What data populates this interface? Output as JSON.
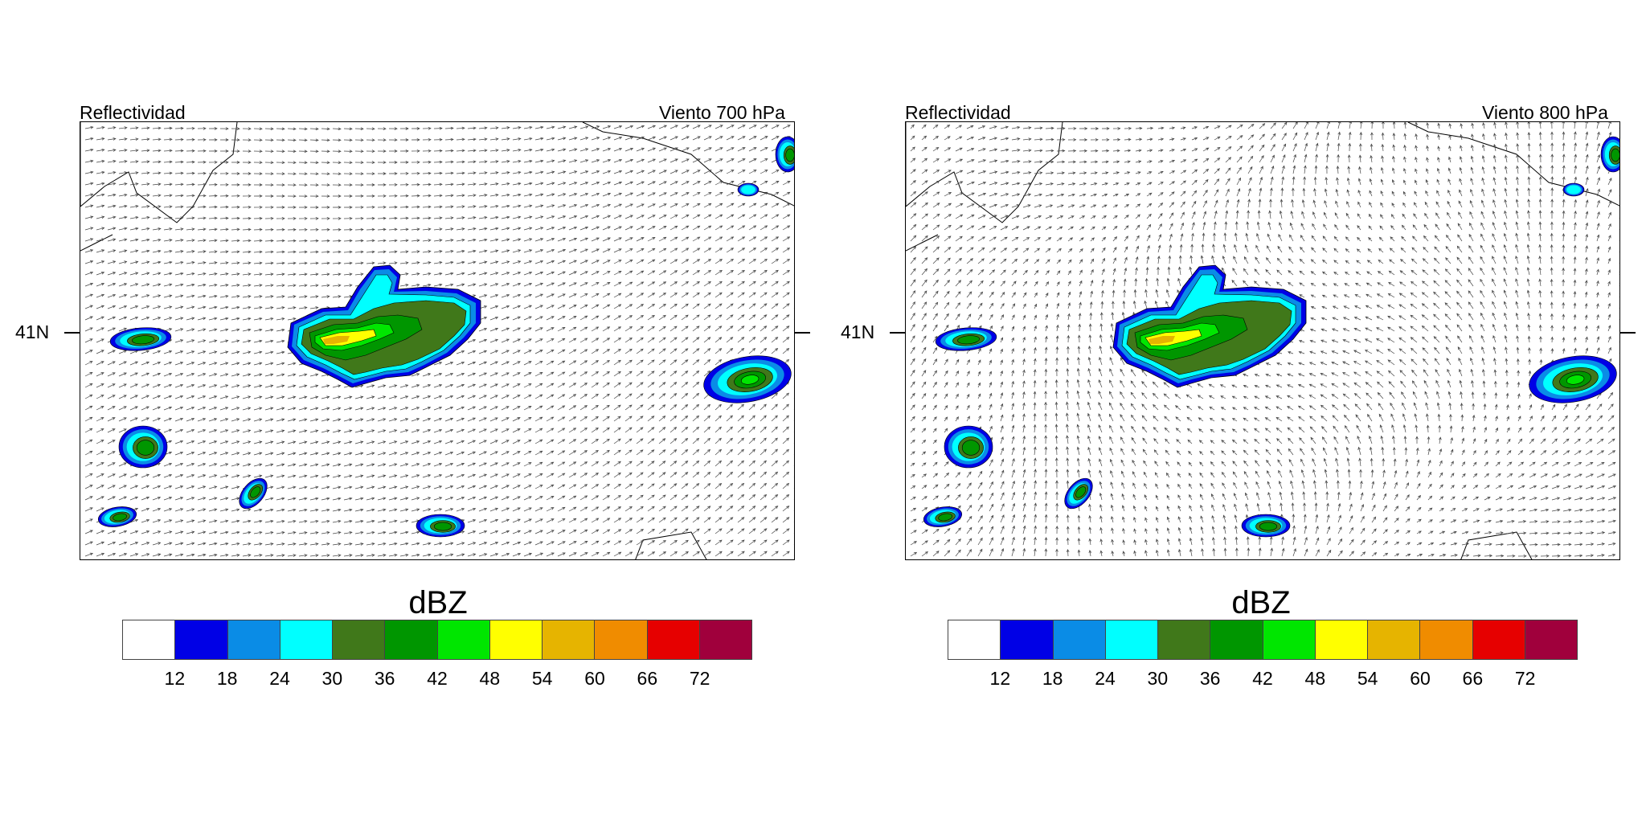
{
  "panels": [
    {
      "title_left": "Reflectividad",
      "title_right": "Viento 700 hPa",
      "lat_label": "41N",
      "colorbar_title": "dBZ"
    },
    {
      "title_left": "Reflectividad",
      "title_right": "Viento 800 hPa",
      "lat_label": "41N",
      "colorbar_title": "dBZ"
    }
  ],
  "colorbar": {
    "levels": [
      "12",
      "18",
      "24",
      "30",
      "36",
      "42",
      "48",
      "54",
      "60",
      "66",
      "72"
    ],
    "colors": [
      "#ffffff",
      "#0000e6",
      "#0a8ce6",
      "#00ffff",
      "#40781a",
      "#009600",
      "#00e600",
      "#ffff00",
      "#e6b400",
      "#f08c00",
      "#e60000",
      "#a0003c"
    ]
  }
}
